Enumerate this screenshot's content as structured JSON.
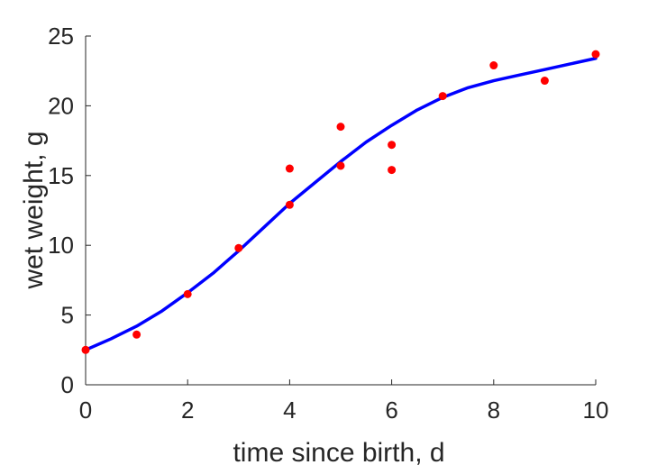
{
  "chart_data": {
    "type": "scatter",
    "title": "",
    "xlabel": "time since birth, d",
    "ylabel": "wet weight, g",
    "xlim": [
      0,
      10
    ],
    "ylim": [
      0,
      25
    ],
    "xticks": [
      0,
      2,
      4,
      6,
      8,
      10
    ],
    "yticks": [
      0,
      5,
      10,
      15,
      20,
      25
    ],
    "grid": false,
    "legend": "none",
    "series": [
      {
        "kind": "scatter",
        "color": "#ff0000",
        "points": [
          [
            0,
            2.5
          ],
          [
            1,
            3.6
          ],
          [
            2,
            6.5
          ],
          [
            3,
            9.8
          ],
          [
            4,
            15.5
          ],
          [
            4,
            12.9
          ],
          [
            5,
            18.5
          ],
          [
            5,
            15.7
          ],
          [
            6,
            17.2
          ],
          [
            6,
            15.4
          ],
          [
            7,
            20.7
          ],
          [
            8,
            22.9
          ],
          [
            9,
            21.8
          ],
          [
            10,
            23.7
          ]
        ]
      },
      {
        "kind": "line",
        "color": "#0000ff",
        "points": [
          [
            0,
            2.5
          ],
          [
            0.5,
            3.3
          ],
          [
            1,
            4.2
          ],
          [
            1.5,
            5.3
          ],
          [
            2,
            6.6
          ],
          [
            2.5,
            8.0
          ],
          [
            3,
            9.6
          ],
          [
            3.5,
            11.3
          ],
          [
            4,
            13.0
          ],
          [
            4.5,
            14.5
          ],
          [
            5,
            16.0
          ],
          [
            5.5,
            17.4
          ],
          [
            6,
            18.6
          ],
          [
            6.5,
            19.7
          ],
          [
            7,
            20.6
          ],
          [
            7.5,
            21.3
          ],
          [
            8,
            21.8
          ],
          [
            8.5,
            22.2
          ],
          [
            9,
            22.6
          ],
          [
            9.5,
            23.0
          ],
          [
            10,
            23.4
          ]
        ]
      }
    ]
  }
}
